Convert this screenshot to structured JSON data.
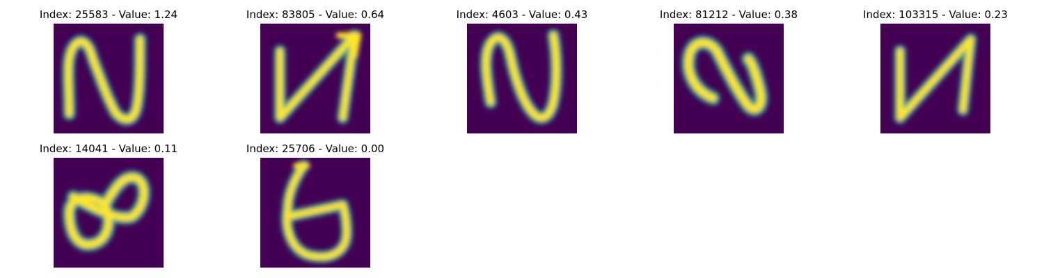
{
  "colors": {
    "background": "#440154",
    "low": "#31688e",
    "mid": "#21918c",
    "high": "#5ec962",
    "peak": "#fde725"
  },
  "panels": [
    {
      "title": "Index: 25583 - Value: 1.24",
      "glyph": "digit-2-icon"
    },
    {
      "title": "Index: 83805 - Value: 0.64",
      "glyph": "digit-n-icon"
    },
    {
      "title": "Index: 4603 - Value: 0.43",
      "glyph": "digit-2-icon"
    },
    {
      "title": "Index: 81212 - Value: 0.38",
      "glyph": "digit-2-icon"
    },
    {
      "title": "Index: 103315 - Value: 0.23",
      "glyph": "digit-n-icon"
    },
    {
      "title": "Index: 14041 - Value: 0.11",
      "glyph": "digit-8-icon"
    },
    {
      "title": "Index: 25706 - Value: 0.00",
      "glyph": "digit-6-icon"
    }
  ]
}
